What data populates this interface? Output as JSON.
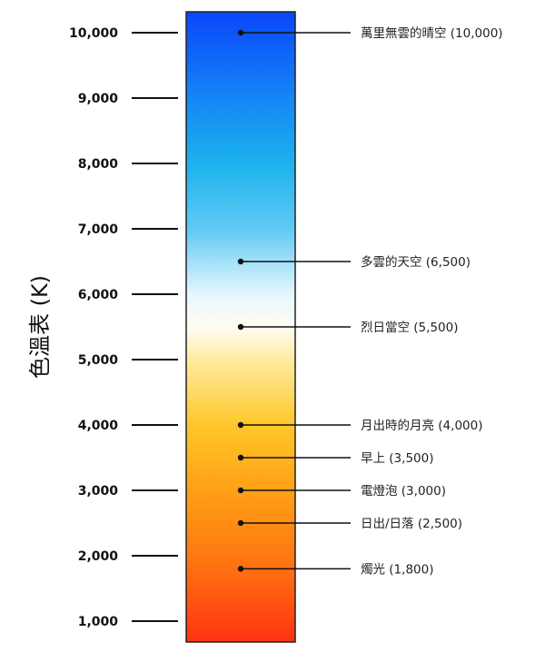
{
  "chart_data": {
    "type": "scale",
    "ylabel": "色溫表 (K)",
    "ylim": [
      680,
      10320
    ],
    "yticks": [
      1000,
      2000,
      3000,
      4000,
      5000,
      6000,
      7000,
      8000,
      9000,
      10000
    ],
    "ytick_labels": [
      "1,000",
      "2,000",
      "3,000",
      "4,000",
      "5,000",
      "6,000",
      "7,000",
      "8,000",
      "9,000",
      "10,000"
    ],
    "gradient": [
      {
        "value": 680,
        "color": "#ff3311"
      },
      {
        "value": 2000,
        "color": "#ff7a12"
      },
      {
        "value": 3000,
        "color": "#ffa015"
      },
      {
        "value": 4000,
        "color": "#ffc72a"
      },
      {
        "value": 5000,
        "color": "#ffeca0"
      },
      {
        "value": 5500,
        "color": "#fffdf4"
      },
      {
        "value": 6000,
        "color": "#e6f6fd"
      },
      {
        "value": 7000,
        "color": "#5fcaf3"
      },
      {
        "value": 8000,
        "color": "#1cb2ee"
      },
      {
        "value": 9000,
        "color": "#1486f5"
      },
      {
        "value": 10320,
        "color": "#0a46fb"
      }
    ],
    "annotations": [
      {
        "value": 10000,
        "label": "萬里無雲的晴空 (10,000)"
      },
      {
        "value": 6500,
        "label": "多雲的天空 (6,500)"
      },
      {
        "value": 5500,
        "label": "烈日當空 (5,500)"
      },
      {
        "value": 4000,
        "label": "月出時的月亮 (4,000)"
      },
      {
        "value": 3500,
        "label": "早上 (3,500)"
      },
      {
        "value": 3000,
        "label": "電燈泡 (3,000)"
      },
      {
        "value": 2500,
        "label": "日出/日落 (2,500)"
      },
      {
        "value": 1800,
        "label": "燭光 (1,800)"
      }
    ]
  }
}
